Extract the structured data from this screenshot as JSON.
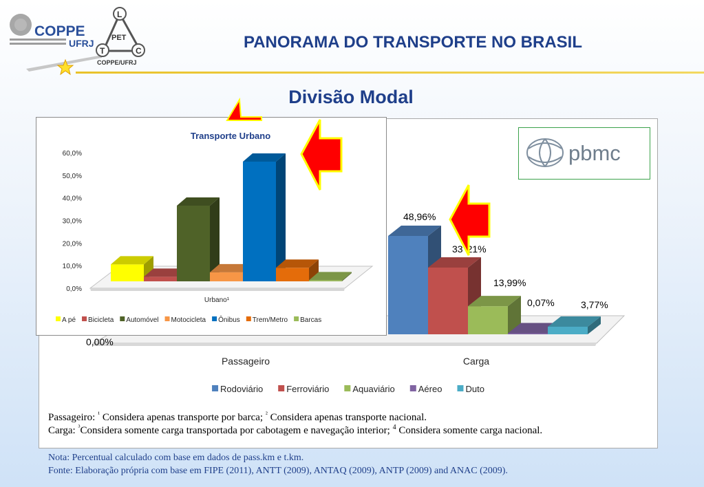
{
  "header": {
    "title": "PANORAMA DO TRANSPORTE NO BRASIL",
    "logo_coppe": "COPPE",
    "logo_ufrj": "UFRJ",
    "logo_pet": "PET",
    "logo_pet_l": "L",
    "logo_pet_t": "T",
    "logo_pet_c": "C",
    "logo_pet_caption": "COPPE/UFRJ"
  },
  "subtitle": "Divisão Modal",
  "pbmc_logo": "pbmc",
  "colors": {
    "title_blue": "#1f3f8a",
    "arrow_red": "#ff0000",
    "arrow_yellow": "#ffff00"
  },
  "chart_data": [
    {
      "type": "bar",
      "title": "Transporte Urbano",
      "categories": [
        "Urbano¹"
      ],
      "series": [
        {
          "name": "A pé",
          "values": [
            7.5
          ],
          "color": "#ffff00"
        },
        {
          "name": "Bicicleta",
          "values": [
            2.0
          ],
          "color": "#c0504d"
        },
        {
          "name": "Automóvel",
          "values": [
            33.5
          ],
          "color": "#4f6228"
        },
        {
          "name": "Motocicleta",
          "values": [
            4.0
          ],
          "color": "#f79646"
        },
        {
          "name": "Ônibus",
          "values": [
            53.0
          ],
          "color": "#0070c0"
        },
        {
          "name": "Trem/Metro",
          "values": [
            6.0
          ],
          "color": "#e46c0a"
        },
        {
          "name": "Barcas",
          "values": [
            0.5
          ],
          "color": "#9bbb59"
        }
      ],
      "yticks": [
        "0,0%",
        "10,0%",
        "20,0%",
        "30,0%",
        "40,0%",
        "50,0%",
        "60,0%"
      ],
      "ylim": [
        0,
        60
      ],
      "legend": "bottom"
    },
    {
      "type": "bar",
      "categories": [
        "Passageiro",
        "Carga"
      ],
      "series": [
        {
          "name": "Rodoviário",
          "values": [
            null,
            48.96
          ],
          "color": "#4f81bd"
        },
        {
          "name": "Ferroviário",
          "values": [
            null,
            33.21
          ],
          "color": "#c0504d"
        },
        {
          "name": "Aquaviário",
          "values": [
            null,
            13.99
          ],
          "color": "#9bbb59"
        },
        {
          "name": "Aéreo",
          "values": [
            null,
            0.07
          ],
          "color": "#8064a2"
        },
        {
          "name": "Duto",
          "values": [
            0.0,
            3.77
          ],
          "color": "#4bacc6"
        }
      ],
      "data_labels": {
        "passageiro_duto": "0,00%",
        "carga_rodoviario": "48,96%",
        "carga_ferroviario": "33,21%",
        "carga_ferroviario_visible": "33",
        "carga_ferroviario_visible_end": "21%",
        "carga_aquaviario": "13,99%",
        "carga_aereo": "0,07%",
        "carga_duto": "3,77%"
      },
      "ylim": [
        0,
        50
      ],
      "legend": "bottom"
    }
  ],
  "notes": {
    "line1_prefix": "Passageiro: ",
    "line1_sup1": "¹",
    "line1_text1": " Considera apenas transporte por barca; ",
    "line1_sup2": "²",
    "line1_text2": " Considera apenas transporte nacional.",
    "line2_prefix": "Carga: ",
    "line2_sup3": "³",
    "line2_text3": "Considera somente carga transportada por cabotagem e navegação interior; ",
    "line2_sup4": "4",
    "line2_text4": " Considera somente carga nacional."
  },
  "footer": {
    "nota": "Nota: Percentual calculado com base em dados de pass.km e t.km.",
    "fonte": "Fonte: Elaboração própria com base em  FIPE (2011), ANTT (2009), ANTAQ (2009), ANTP (2009) and ANAC (2009)."
  }
}
